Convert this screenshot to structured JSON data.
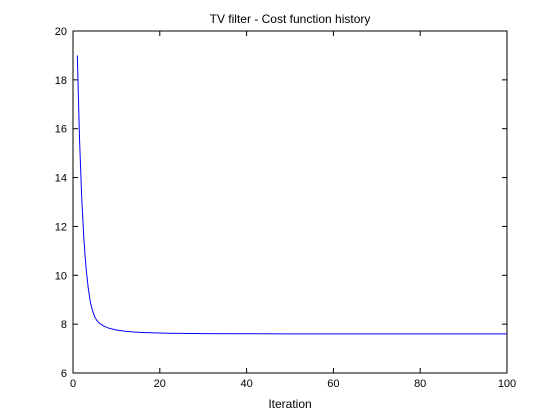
{
  "chart_data": {
    "type": "line",
    "title": "TV filter - Cost function history",
    "xlabel": "Iteration",
    "ylabel": "",
    "xlim": [
      0,
      100
    ],
    "ylim": [
      6,
      20
    ],
    "xticks": [
      0,
      20,
      40,
      60,
      80,
      100
    ],
    "yticks": [
      6,
      8,
      10,
      12,
      14,
      16,
      18,
      20
    ],
    "grid": false,
    "line_color": "#0000ff",
    "series": [
      {
        "x": [
          1,
          1.5,
          2,
          2.5,
          3,
          3.5,
          4,
          4.5,
          5,
          5.5,
          6,
          7,
          8,
          9,
          10,
          12,
          14,
          16,
          18,
          20,
          22,
          25,
          30,
          40,
          50,
          60,
          70,
          80,
          90,
          100
        ],
        "values": [
          19.0,
          15.6,
          13.2,
          11.5,
          10.3,
          9.5,
          8.9,
          8.55,
          8.3,
          8.15,
          8.05,
          7.93,
          7.85,
          7.8,
          7.76,
          7.71,
          7.68,
          7.66,
          7.645,
          7.635,
          7.628,
          7.62,
          7.613,
          7.607,
          7.604,
          7.603,
          7.602,
          7.602,
          7.602,
          7.602
        ]
      }
    ]
  }
}
